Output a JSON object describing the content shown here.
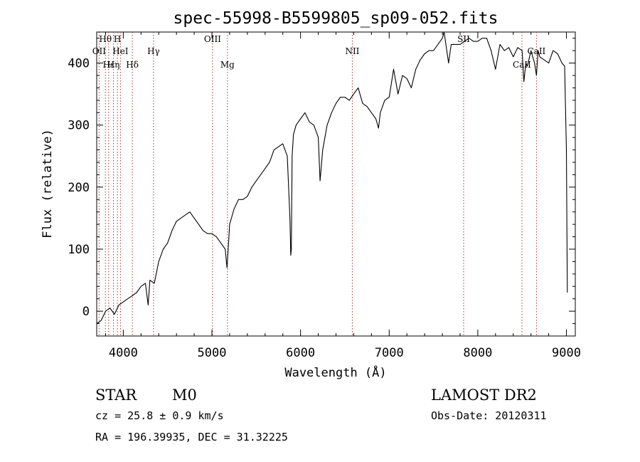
{
  "chart_data": {
    "type": "line",
    "title": "spec-55998-B5599805_sp09-052.fits",
    "xlabel": "Wavelength (Å)",
    "ylabel": "Flux (relative)",
    "xlim": [
      3700,
      9100
    ],
    "ylim": [
      -40,
      450
    ],
    "xticks": [
      4000,
      5000,
      6000,
      7000,
      8000,
      9000
    ],
    "yticks": [
      0,
      100,
      200,
      300,
      400
    ],
    "grid": false,
    "series": [
      {
        "x": [
          3700,
          3750,
          3800,
          3850,
          3900,
          3950,
          4000,
          4050,
          4100,
          4150,
          4200,
          4250,
          4280,
          4300,
          4350,
          4400,
          4450,
          4500,
          4550,
          4600,
          4650,
          4700,
          4750,
          4800,
          4850,
          4900,
          4950,
          5000,
          5050,
          5100,
          5150,
          5170,
          5190,
          5200,
          5250,
          5300,
          5350,
          5400,
          5450,
          5500,
          5550,
          5600,
          5650,
          5700,
          5750,
          5800,
          5850,
          5880,
          5890,
          5896,
          5905,
          5920,
          5950,
          6000,
          6050,
          6100,
          6150,
          6200,
          6220,
          6250,
          6300,
          6350,
          6400,
          6450,
          6500,
          6550,
          6600,
          6650,
          6700,
          6750,
          6800,
          6850,
          6880,
          6900,
          6950,
          7000,
          7050,
          7100,
          7150,
          7200,
          7250,
          7300,
          7350,
          7400,
          7450,
          7500,
          7550,
          7600,
          7620,
          7650,
          7670,
          7700,
          7750,
          7800,
          7850,
          7900,
          7950,
          8000,
          8050,
          8100,
          8150,
          8200,
          8250,
          8300,
          8350,
          8400,
          8450,
          8500,
          8520,
          8542,
          8560,
          8600,
          8640,
          8662,
          8680,
          8700,
          8750,
          8800,
          8850,
          8900,
          8950,
          8980,
          9000,
          9010
        ],
        "y": [
          -20,
          -15,
          0,
          5,
          -5,
          10,
          15,
          20,
          25,
          30,
          40,
          45,
          10,
          50,
          45,
          80,
          100,
          110,
          130,
          145,
          150,
          155,
          160,
          150,
          140,
          130,
          125,
          125,
          120,
          110,
          100,
          70,
          115,
          140,
          165,
          180,
          180,
          185,
          200,
          210,
          220,
          230,
          240,
          260,
          265,
          270,
          250,
          150,
          90,
          100,
          250,
          285,
          300,
          310,
          320,
          305,
          300,
          280,
          210,
          260,
          300,
          320,
          335,
          345,
          345,
          340,
          350,
          360,
          335,
          330,
          320,
          310,
          295,
          320,
          340,
          345,
          390,
          350,
          380,
          375,
          360,
          390,
          405,
          415,
          420,
          420,
          430,
          440,
          450,
          420,
          400,
          430,
          430,
          430,
          435,
          440,
          435,
          435,
          440,
          440,
          420,
          390,
          430,
          420,
          425,
          410,
          425,
          420,
          370,
          400,
          395,
          420,
          400,
          380,
          420,
          410,
          405,
          400,
          420,
          415,
          400,
          395,
          260,
          30
        ]
      }
    ],
    "lines": [
      {
        "name": "Hθ",
        "wavelength": 3798,
        "row": 1
      },
      {
        "name": "OII",
        "wavelength": 3727,
        "row": 2
      },
      {
        "name": "Hε",
        "wavelength": 3835,
        "row": 3
      },
      {
        "name": "Hη",
        "wavelength": 3889,
        "row": 3
      },
      {
        "name": "H",
        "wavelength": 3934,
        "row": 1
      },
      {
        "name": "HeI",
        "wavelength": 3968,
        "row": 2
      },
      {
        "name": "Hδ",
        "wavelength": 4102,
        "row": 3
      },
      {
        "name": "Hγ",
        "wavelength": 4341,
        "row": 2
      },
      {
        "name": "OIII",
        "wavelength": 5007,
        "row": 1
      },
      {
        "name": "Mg",
        "wavelength": 5175,
        "row": 3
      },
      {
        "name": "NII",
        "wavelength": 6584,
        "row": 2
      },
      {
        "name": "SII",
        "wavelength": 7840,
        "row": 1
      },
      {
        "name": "CaII",
        "wavelength": 8498,
        "row": 3
      },
      {
        "name": "CaII",
        "wavelength": 8662,
        "row": 2
      }
    ]
  },
  "info": {
    "object_class": "STAR",
    "subclass": "M0",
    "survey": "LAMOST DR2",
    "redshift": "cz = 25.8 ± 0.9 km/s",
    "obs_date": "Obs-Date: 20120311",
    "coords": "RA = 196.39935, DEC =  31.32225"
  }
}
